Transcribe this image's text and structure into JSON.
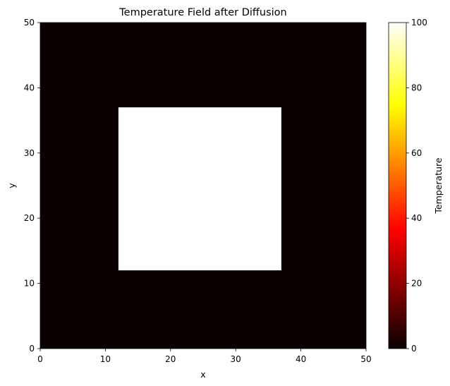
{
  "chart_data": {
    "type": "heatmap",
    "title": "Temperature Field after Diffusion",
    "xlabel": "x",
    "ylabel": "y",
    "xlim": [
      0,
      50
    ],
    "ylim": [
      0,
      50
    ],
    "xticks": [
      0,
      10,
      20,
      30,
      40,
      50
    ],
    "yticks": [
      0,
      10,
      20,
      30,
      40,
      50
    ],
    "grid": false,
    "colormap": "hot",
    "colorbar": {
      "label": "Temperature",
      "range": [
        0,
        100
      ],
      "ticks": [
        0,
        20,
        40,
        60,
        80,
        100
      ]
    },
    "background_value": 0,
    "regions": [
      {
        "x_range": [
          12,
          37
        ],
        "y_range": [
          12,
          37
        ],
        "value": 100
      }
    ]
  }
}
